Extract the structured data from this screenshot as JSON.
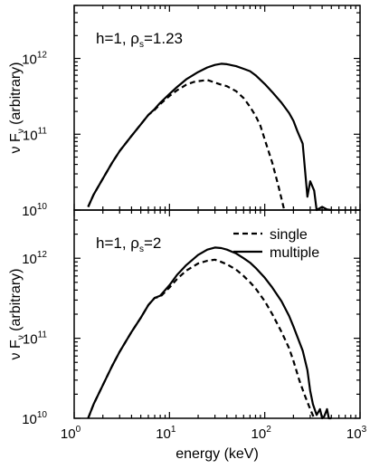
{
  "chart_data": [
    {
      "type": "line",
      "panel": "top",
      "annotation": "h=1, ρs=1.23",
      "annotation_main": "h=1, ρ",
      "annotation_sub": "s",
      "annotation_value": "=1.23",
      "xlabel": "",
      "ylabel": "ν F ν (arbitrary)",
      "ylabel_main": "ν F",
      "ylabel_sub": "ν",
      "ylabel_rest": " (arbitrary)",
      "xscale": "log",
      "yscale": "log",
      "xlim": [
        1,
        1000
      ],
      "ylim": [
        10000000000.0,
        5000000000000.0
      ],
      "x_ticks": [
        "10",
        "10",
        "10",
        "10"
      ],
      "x_tick_exponents": [
        "0",
        "1",
        "2",
        "3"
      ],
      "y_ticks": [
        "10",
        "10",
        "10"
      ],
      "y_tick_exponents": [
        "10",
        "11",
        "12"
      ],
      "series": [
        {
          "name": "single",
          "style": "dashed",
          "x": [
            1.4,
            1.6,
            2,
            2.5,
            3,
            4,
            5,
            6,
            7,
            8,
            10,
            12,
            15,
            18,
            20,
            25,
            30,
            35,
            40,
            50,
            60,
            70,
            80,
            90,
            100,
            120,
            140,
            160
          ],
          "y": [
            11000000000.0,
            16000000000.0,
            26000000000.0,
            42000000000.0,
            60000000000.0,
            95000000000.0,
            135000000000.0,
            180000000000.0,
            210000000000.0,
            250000000000.0,
            320000000000.0,
            380000000000.0,
            450000000000.0,
            490000000000.0,
            500000000000.0,
            520000000000.0,
            480000000000.0,
            450000000000.0,
            430000000000.0,
            370000000000.0,
            300000000000.0,
            230000000000.0,
            175000000000.0,
            130000000000.0,
            85000000000.0,
            42000000000.0,
            20000000000.0,
            10000000000.0
          ]
        },
        {
          "name": "multiple",
          "style": "solid",
          "x": [
            1.4,
            1.6,
            2,
            2.5,
            3,
            4,
            5,
            6,
            7,
            8,
            10,
            12,
            15,
            20,
            25,
            30,
            35,
            40,
            50,
            60,
            70,
            80,
            100,
            120,
            150,
            180,
            200,
            220,
            250,
            280,
            300,
            330,
            350,
            400,
            450,
            500
          ],
          "y": [
            11000000000.0,
            16000000000.0,
            26000000000.0,
            42000000000.0,
            60000000000.0,
            95000000000.0,
            135000000000.0,
            180000000000.0,
            215000000000.0,
            260000000000.0,
            340000000000.0,
            420000000000.0,
            530000000000.0,
            660000000000.0,
            760000000000.0,
            820000000000.0,
            850000000000.0,
            840000000000.0,
            790000000000.0,
            730000000000.0,
            680000000000.0,
            600000000000.0,
            460000000000.0,
            360000000000.0,
            260000000000.0,
            190000000000.0,
            150000000000.0,
            110000000000.0,
            75000000000.0,
            15000000000.0,
            24000000000.0,
            18000000000.0,
            10000000000.0,
            11000000000.0,
            10200000000.0,
            10000000000.0
          ]
        }
      ]
    },
    {
      "type": "line",
      "panel": "bottom",
      "annotation": "h=1, ρs=2",
      "annotation_main": "h=1, ρ",
      "annotation_sub": "s",
      "annotation_value": "=2",
      "xlabel": "energy (keV)",
      "ylabel": "ν F ν (arbitrary)",
      "ylabel_main": "ν F",
      "ylabel_sub": "ν",
      "ylabel_rest": " (arbitrary)",
      "xscale": "log",
      "yscale": "log",
      "xlim": [
        1,
        1000
      ],
      "ylim": [
        10000000000.0,
        4000000000000.0
      ],
      "x_ticks": [
        "10",
        "10",
        "10",
        "10"
      ],
      "x_tick_exponents": [
        "0",
        "1",
        "2",
        "3"
      ],
      "y_ticks": [
        "10",
        "10",
        "10"
      ],
      "y_tick_exponents": [
        "10",
        "11",
        "12"
      ],
      "legend": {
        "placement": "top-right",
        "entries": [
          "single",
          "multiple"
        ]
      },
      "series": [
        {
          "name": "single",
          "style": "dashed",
          "x": [
            1.4,
            1.6,
            2,
            2.5,
            3,
            4,
            5,
            6,
            7,
            8,
            10,
            12,
            15,
            20,
            25,
            30,
            35,
            40,
            50,
            60,
            70,
            80,
            100,
            120,
            150,
            180,
            200,
            230,
            260,
            300,
            330
          ],
          "y": [
            10000000000.0,
            15000000000.0,
            26000000000.0,
            45000000000.0,
            68000000000.0,
            120000000000.0,
            180000000000.0,
            260000000000.0,
            320000000000.0,
            330000000000.0,
            430000000000.0,
            550000000000.0,
            700000000000.0,
            860000000000.0,
            930000000000.0,
            960000000000.0,
            900000000000.0,
            840000000000.0,
            720000000000.0,
            600000000000.0,
            500000000000.0,
            420000000000.0,
            290000000000.0,
            200000000000.0,
            120000000000.0,
            75000000000.0,
            52000000000.0,
            30000000000.0,
            20000000000.0,
            13000000000.0,
            10000000000.0
          ]
        },
        {
          "name": "multiple",
          "style": "solid",
          "x": [
            1.4,
            1.6,
            2,
            2.5,
            3,
            4,
            5,
            6,
            7,
            8,
            10,
            12,
            15,
            20,
            25,
            30,
            35,
            40,
            50,
            60,
            70,
            80,
            100,
            120,
            150,
            180,
            200,
            250,
            280,
            300,
            320,
            350,
            380,
            400,
            420,
            450,
            470,
            500
          ],
          "y": [
            10000000000.0,
            15000000000.0,
            26000000000.0,
            45000000000.0,
            68000000000.0,
            120000000000.0,
            180000000000.0,
            260000000000.0,
            320000000000.0,
            340000000000.0,
            460000000000.0,
            620000000000.0,
            820000000000.0,
            1100000000000.0,
            1280000000000.0,
            1360000000000.0,
            1340000000000.0,
            1280000000000.0,
            1150000000000.0,
            1000000000000.0,
            880000000000.0,
            760000000000.0,
            570000000000.0,
            430000000000.0,
            290000000000.0,
            190000000000.0,
            140000000000.0,
            70000000000.0,
            40000000000.0,
            22000000000.0,
            15000000000.0,
            11000000000.0,
            13000000000.0,
            10000000000.0,
            10500000000.0,
            13000000000.0,
            10000000000.0,
            10000000000.0
          ]
        }
      ]
    }
  ]
}
